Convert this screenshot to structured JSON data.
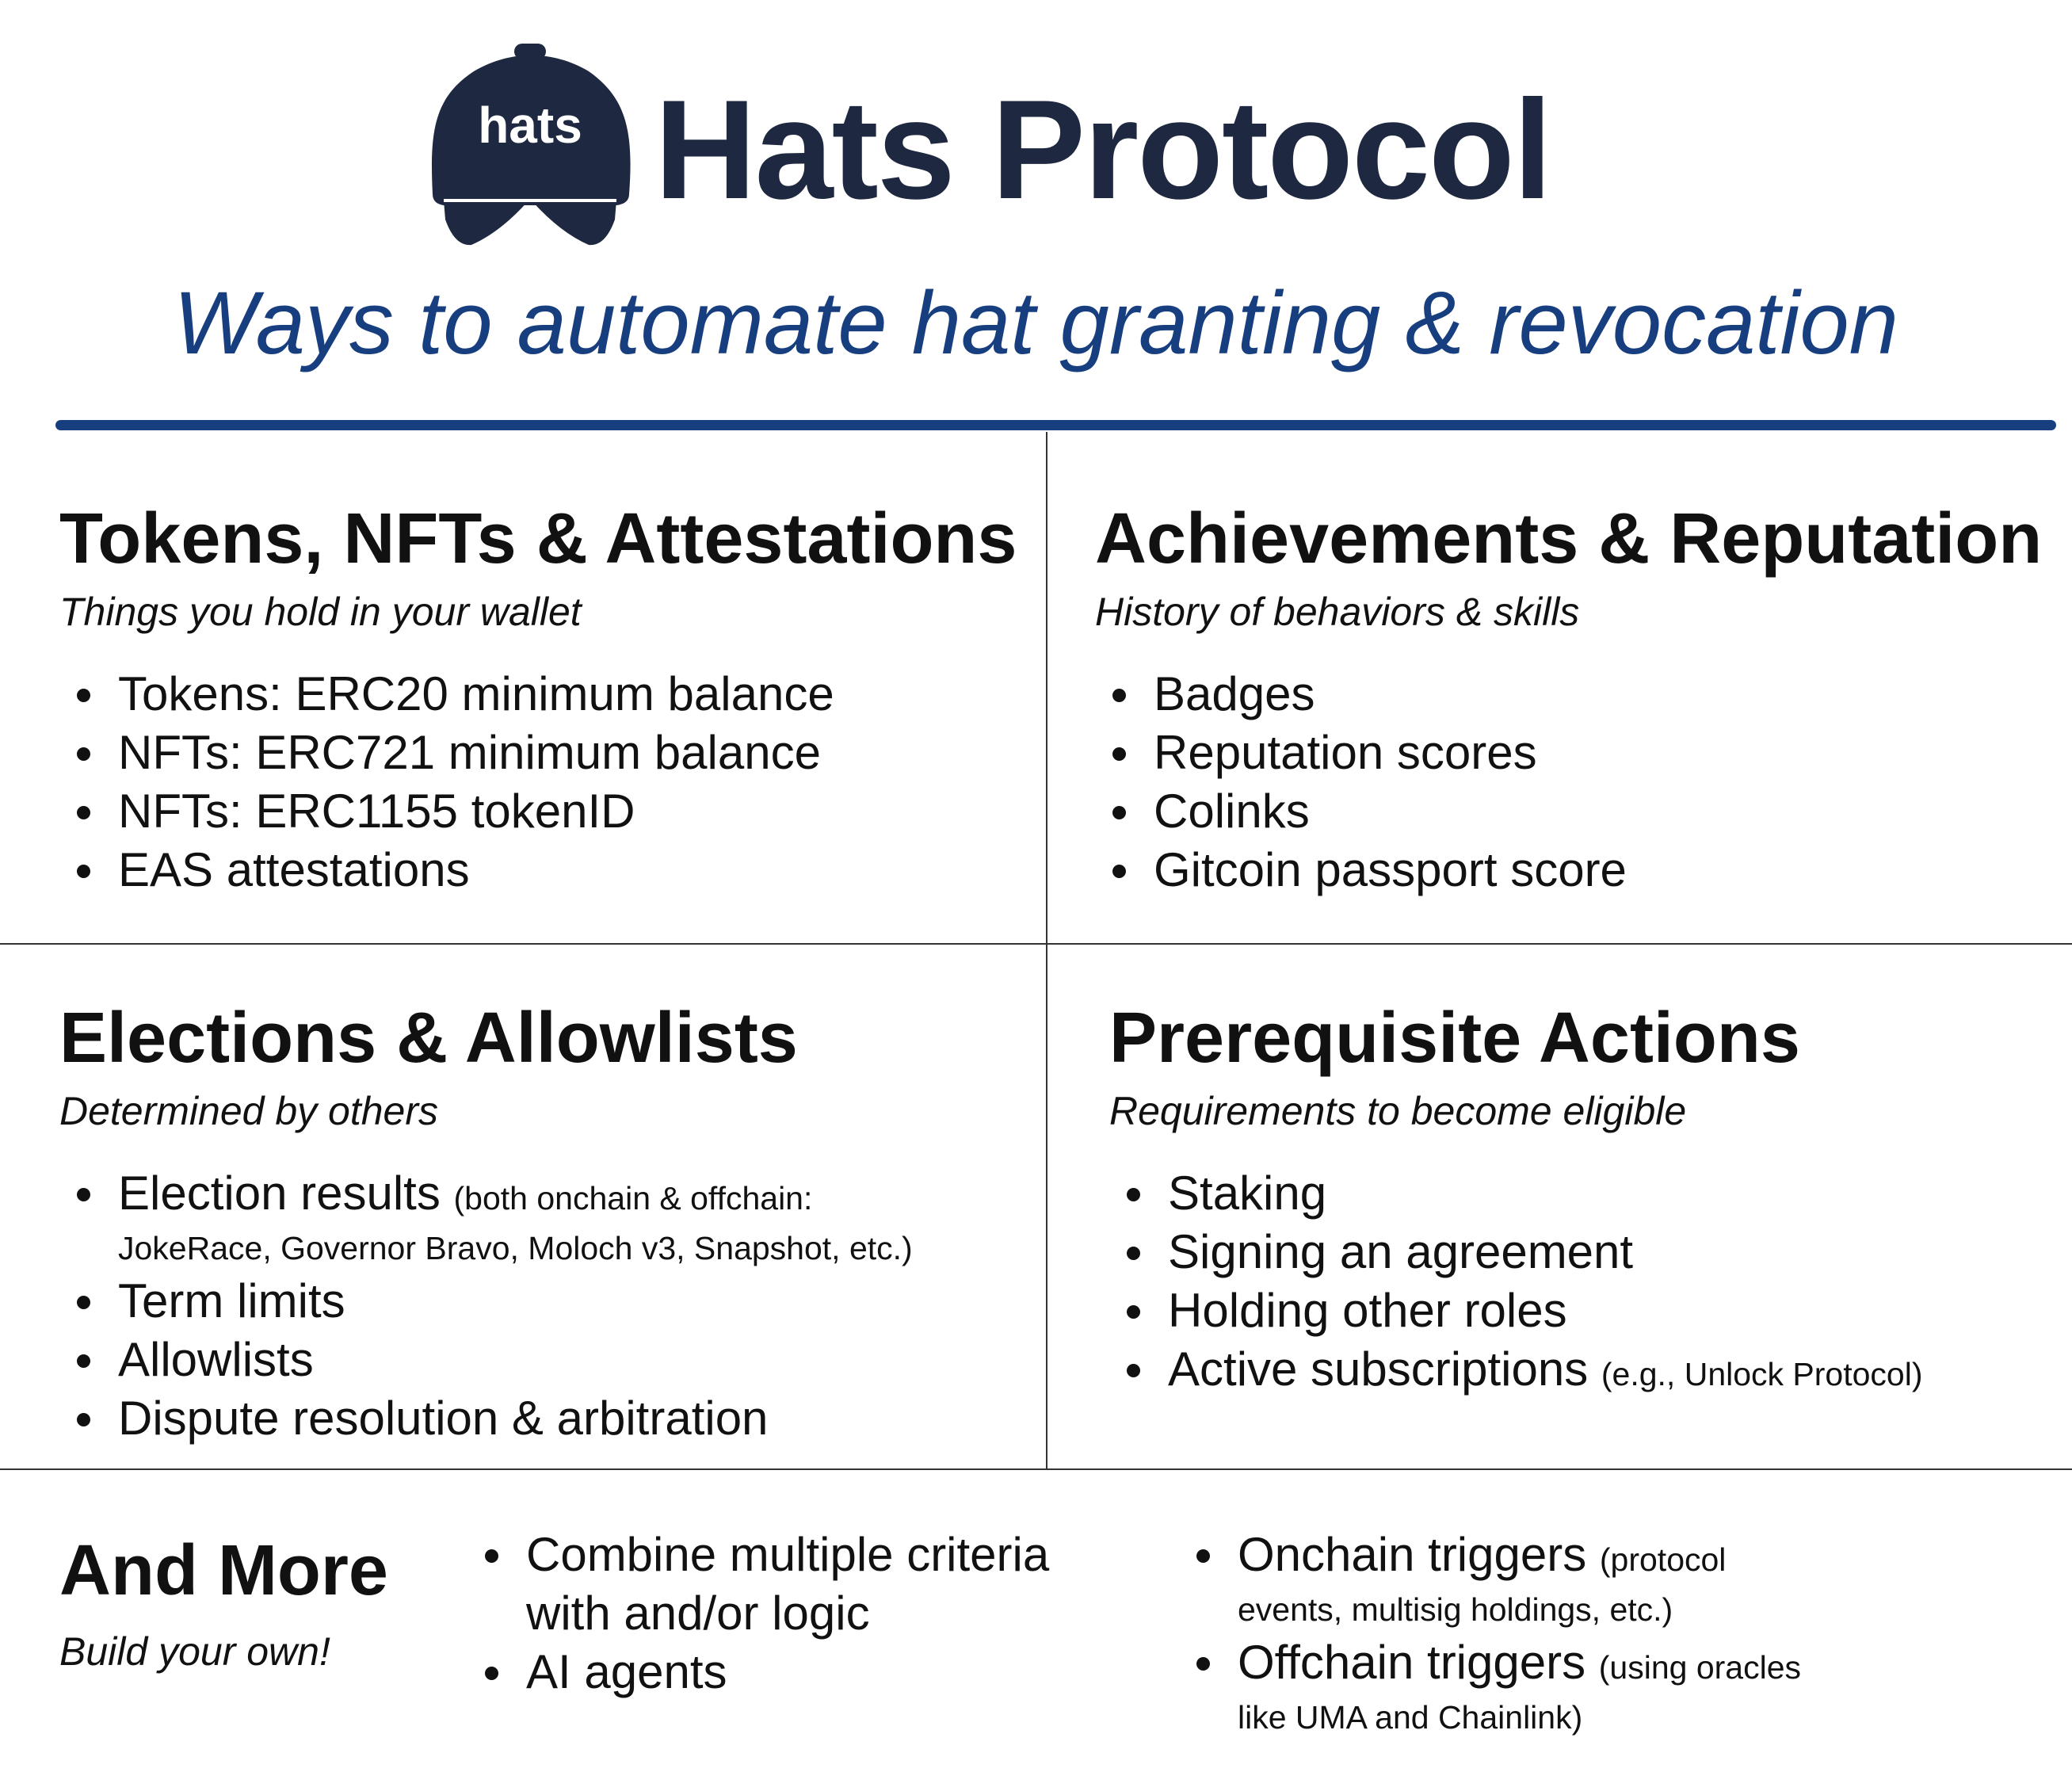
{
  "header": {
    "logo_text": "hats",
    "title": "Hats Protocol",
    "subtitle": "Ways to automate hat granting & revocation"
  },
  "colors": {
    "navy": "#1e2840",
    "accent_blue": "#173f7f",
    "text": "#111111",
    "rule": "#333333"
  },
  "sections": {
    "tokens": {
      "title": "Tokens, NFTs & Attestations",
      "subtitle": "Things you hold in your wallet",
      "items": [
        "Tokens: ERC20 minimum balance",
        "NFTs: ERC721 minimum balance",
        "NFTs: ERC1155 tokenID",
        "EAS attestations"
      ]
    },
    "achievements": {
      "title": "Achievements & Reputation",
      "subtitle": "History of behaviors & skills",
      "items": [
        "Badges",
        "Reputation scores",
        "Colinks",
        "Gitcoin passport score"
      ]
    },
    "elections": {
      "title": "Elections & Allowlists",
      "subtitle": "Determined by others",
      "items": [
        {
          "text": "Election results",
          "note": "(both onchain & offchain:",
          "note_line2": "JokeRace, Governor Bravo, Moloch v3, Snapshot, etc.)"
        },
        {
          "text": "Term limits"
        },
        {
          "text": "Allowlists"
        },
        {
          "text": "Dispute resolution & arbitration"
        }
      ]
    },
    "prerequisites": {
      "title": "Prerequisite Actions",
      "subtitle": "Requirements to become eligible",
      "items": [
        {
          "text": "Staking"
        },
        {
          "text": "Signing an agreement"
        },
        {
          "text": "Holding other roles"
        },
        {
          "text": "Active subscriptions",
          "note": "(e.g., Unlock Protocol)"
        }
      ]
    },
    "more": {
      "title": "And More",
      "subtitle": "Build your own!",
      "col1": [
        {
          "text": "Combine multiple criteria",
          "line2": "with and/or logic"
        },
        {
          "text": "AI agents"
        }
      ],
      "col2": [
        {
          "text": "Onchain triggers",
          "note": "(protocol",
          "note_line2": "events, multisig holdings, etc.)"
        },
        {
          "text": "Offchain triggers",
          "note": "(using oracles",
          "note_line2": "like UMA and Chainlink)"
        }
      ]
    }
  }
}
